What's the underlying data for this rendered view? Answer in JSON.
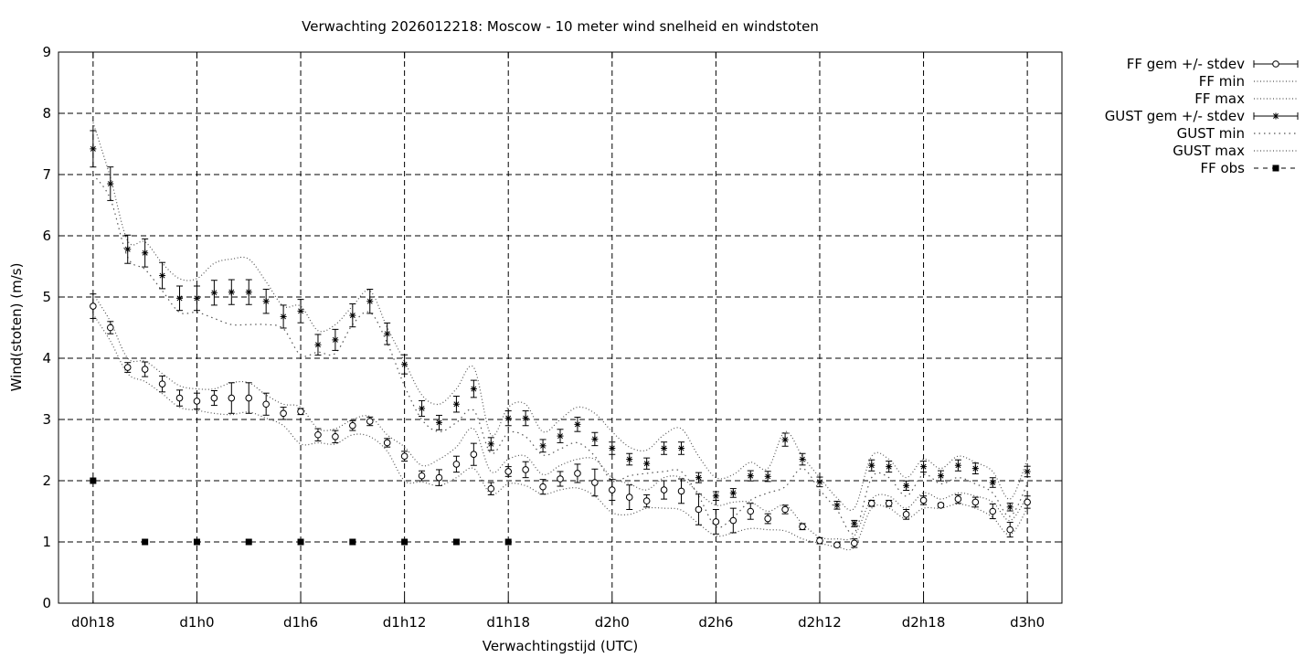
{
  "chart_data": {
    "type": "line",
    "title": "Verwachting 2026012218: Moscow - 10 meter wind snelheid en windstoten",
    "xlabel": "Verwachtingstijd (UTC)",
    "ylabel": "Wind(stoten) (m/s)",
    "ylim": [
      0,
      9
    ],
    "xlim": [
      -2,
      56
    ],
    "grid": true,
    "legend_position": "outside-top-right",
    "x_ticks": [
      {
        "x": 0,
        "label": "d0h18"
      },
      {
        "x": 6,
        "label": "d1h0"
      },
      {
        "x": 12,
        "label": "d1h6"
      },
      {
        "x": 18,
        "label": "d1h12"
      },
      {
        "x": 24,
        "label": "d1h18"
      },
      {
        "x": 30,
        "label": "d2h0"
      },
      {
        "x": 36,
        "label": "d2h6"
      },
      {
        "x": 42,
        "label": "d2h12"
      },
      {
        "x": 48,
        "label": "d2h18"
      },
      {
        "x": 54,
        "label": "d3h0"
      }
    ],
    "y_ticks": [
      "0",
      "1",
      "2",
      "3",
      "4",
      "5",
      "6",
      "7",
      "8",
      "9"
    ],
    "x": [
      0,
      1,
      2,
      3,
      4,
      5,
      6,
      7,
      8,
      9,
      10,
      11,
      12,
      13,
      14,
      15,
      16,
      17,
      18,
      19,
      20,
      21,
      22,
      23,
      24,
      25,
      26,
      27,
      28,
      29,
      30,
      31,
      32,
      33,
      34,
      35,
      36,
      37,
      38,
      39,
      40,
      41,
      42,
      43,
      44,
      45,
      46,
      47,
      48,
      49,
      50,
      51,
      52,
      53,
      54
    ],
    "series": [
      {
        "name": "FF gem +/- stdev",
        "marker": "circle",
        "values": [
          4.85,
          4.5,
          3.85,
          3.82,
          3.58,
          3.35,
          3.3,
          3.35,
          3.35,
          3.35,
          3.25,
          3.1,
          3.13,
          2.75,
          2.72,
          2.9,
          2.97,
          2.62,
          2.4,
          2.08,
          2.05,
          2.27,
          2.43,
          1.87,
          2.15,
          2.18,
          1.9,
          2.03,
          2.12,
          1.97,
          1.85,
          1.73,
          1.67,
          1.85,
          1.83,
          1.53,
          1.33,
          1.35,
          1.5,
          1.38,
          1.53,
          1.25,
          1.02,
          0.95,
          0.98,
          1.63,
          1.63,
          1.45,
          1.68,
          1.6,
          1.7,
          1.65,
          1.5,
          1.2,
          1.65
        ],
        "stdev": [
          0.2,
          0.1,
          0.08,
          0.12,
          0.13,
          0.13,
          0.13,
          0.12,
          0.25,
          0.25,
          0.18,
          0.1,
          0.05,
          0.1,
          0.1,
          0.08,
          0.07,
          0.07,
          0.08,
          0.08,
          0.13,
          0.13,
          0.18,
          0.1,
          0.08,
          0.13,
          0.12,
          0.12,
          0.15,
          0.22,
          0.17,
          0.2,
          0.1,
          0.15,
          0.2,
          0.25,
          0.2,
          0.2,
          0.13,
          0.08,
          0.07,
          0.05,
          0.05,
          0.03,
          0.07,
          0.05,
          0.05,
          0.08,
          0.07,
          0.03,
          0.07,
          0.08,
          0.12,
          0.12,
          0.1
        ]
      },
      {
        "name": "FF min",
        "values": [
          4.72,
          4.28,
          3.75,
          3.62,
          3.42,
          3.2,
          3.15,
          3.1,
          3.08,
          3.12,
          3.02,
          2.9,
          2.6,
          2.62,
          2.6,
          2.75,
          2.72,
          2.48,
          2.0,
          1.98,
          1.92,
          2.05,
          2.2,
          1.78,
          1.95,
          1.92,
          1.78,
          1.85,
          1.88,
          1.75,
          1.48,
          1.45,
          1.55,
          1.55,
          1.52,
          1.3,
          1.1,
          1.15,
          1.22,
          1.2,
          1.18,
          1.05,
          0.98,
          0.92,
          0.92,
          1.55,
          1.55,
          1.38,
          1.55,
          1.55,
          1.62,
          1.55,
          1.4,
          1.12,
          1.55
        ]
      },
      {
        "name": "FF max",
        "values": [
          5.05,
          4.6,
          4.0,
          3.95,
          3.75,
          3.55,
          3.5,
          3.5,
          3.6,
          3.6,
          3.4,
          3.25,
          3.2,
          2.85,
          2.85,
          3.0,
          3.05,
          2.75,
          2.55,
          2.25,
          2.35,
          2.55,
          2.85,
          2.15,
          2.35,
          2.4,
          2.1,
          2.25,
          2.35,
          2.35,
          2.05,
          1.95,
          1.85,
          2.05,
          2.05,
          1.8,
          1.6,
          1.65,
          1.65,
          1.5,
          1.6,
          1.3,
          1.08,
          1.05,
          1.1,
          1.7,
          1.75,
          1.55,
          1.8,
          1.7,
          1.8,
          1.75,
          1.65,
          1.35,
          1.75
        ]
      },
      {
        "name": "GUST gem +/- stdev",
        "marker": "star",
        "values": [
          7.42,
          6.85,
          5.78,
          5.72,
          5.35,
          4.98,
          4.98,
          5.07,
          5.08,
          5.08,
          4.93,
          4.68,
          4.77,
          4.22,
          4.3,
          4.7,
          4.93,
          4.4,
          3.9,
          3.18,
          2.95,
          3.25,
          3.5,
          2.6,
          3.02,
          3.02,
          2.57,
          2.73,
          2.92,
          2.68,
          2.53,
          2.35,
          2.28,
          2.53,
          2.53,
          2.05,
          1.75,
          1.8,
          2.08,
          2.07,
          2.67,
          2.35,
          1.98,
          1.6,
          1.3,
          2.25,
          2.23,
          1.92,
          2.23,
          2.08,
          2.25,
          2.2,
          1.97,
          1.57,
          2.15
        ]
      },
      {
        "name": "GUST min",
        "values": [
          7.0,
          6.6,
          5.65,
          5.45,
          5.1,
          4.75,
          4.75,
          4.65,
          4.55,
          4.55,
          4.55,
          4.48,
          4.05,
          4.1,
          4.08,
          4.55,
          4.75,
          4.25,
          3.55,
          3.0,
          2.8,
          2.95,
          3.15,
          2.45,
          2.78,
          2.72,
          2.42,
          2.52,
          2.62,
          2.4,
          2.0,
          2.08,
          2.12,
          2.15,
          2.15,
          1.75,
          1.25,
          1.4,
          1.68,
          1.8,
          1.9,
          2.2,
          1.85,
          1.52,
          1.15,
          2.05,
          2.05,
          1.75,
          2.1,
          1.95,
          2.05,
          1.95,
          1.8,
          1.42,
          1.95
        ]
      },
      {
        "name": "GUST max",
        "values": [
          7.85,
          6.95,
          5.92,
          5.9,
          5.55,
          5.3,
          5.3,
          5.55,
          5.62,
          5.62,
          5.25,
          4.85,
          4.85,
          4.45,
          4.55,
          4.85,
          5.1,
          4.5,
          3.95,
          3.4,
          3.25,
          3.5,
          3.85,
          2.75,
          3.2,
          3.25,
          2.8,
          3.0,
          3.2,
          3.1,
          2.8,
          2.55,
          2.5,
          2.75,
          2.85,
          2.4,
          2.05,
          2.1,
          2.3,
          2.2,
          2.8,
          2.4,
          2.05,
          1.72,
          1.55,
          2.4,
          2.35,
          2.05,
          2.35,
          2.2,
          2.4,
          2.3,
          2.15,
          1.7,
          2.35
        ]
      },
      {
        "name": "FF obs",
        "marker": "square",
        "x": [
          0,
          3,
          6,
          9,
          12,
          15,
          18,
          21,
          24
        ],
        "values": [
          2,
          1,
          1,
          1,
          1,
          1,
          1,
          1,
          1
        ]
      }
    ]
  }
}
